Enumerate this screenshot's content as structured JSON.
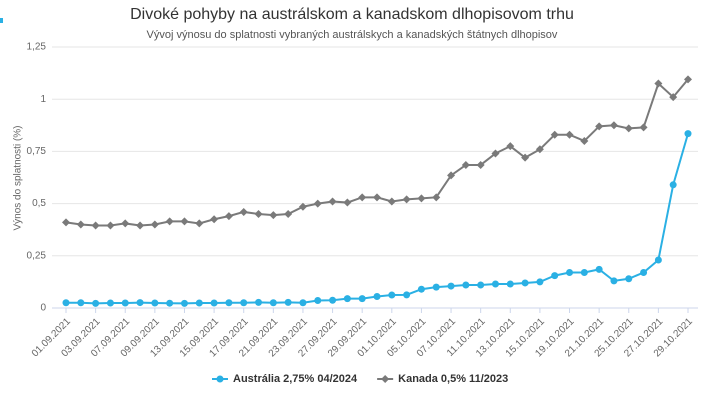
{
  "chart_data": {
    "type": "line",
    "title": "Divoké pohyby na austrálskom a kanadskom dlhopisovom trhu",
    "subtitle": "Vývoj výnosu do splatnosti vybraných austrálskych a kanadských štátnych dlhopisov",
    "y_label": "Výnos do splatnosti (%)",
    "categories": [
      "01.09.2021",
      null,
      "03.09.2021",
      null,
      "07.09.2021",
      null,
      "09.09.2021",
      null,
      "13.09.2021",
      null,
      "15.09.2021",
      null,
      "17.09.2021",
      null,
      "21.09.2021",
      null,
      "23.09.2021",
      null,
      "27.09.2021",
      null,
      "29.09.2021",
      null,
      "01.10.2021",
      null,
      "05.10.2021",
      null,
      "07.10.2021",
      null,
      "11.10.2021",
      null,
      "13.10.2021",
      null,
      "15.10.2021",
      null,
      "19.10.2021",
      null,
      "21.10.2021",
      null,
      "25.10.2021",
      null,
      "27.10.2021",
      null,
      "29.10.2021"
    ],
    "series": [
      {
        "name": "Austrália 2,75% 04/2024",
        "color": "#2ab0e4",
        "marker": "circle",
        "values": [
          0.025,
          0.025,
          0.022,
          0.024,
          0.024,
          0.026,
          0.024,
          0.023,
          0.022,
          0.024,
          0.024,
          0.025,
          0.025,
          0.027,
          0.025,
          0.027,
          0.025,
          0.036,
          0.037,
          0.045,
          0.045,
          0.055,
          0.062,
          0.063,
          0.09,
          0.1,
          0.105,
          0.11,
          0.11,
          0.115,
          0.115,
          0.12,
          0.125,
          0.155,
          0.17,
          0.17,
          0.185,
          0.13,
          0.14,
          0.17,
          0.23,
          0.59,
          0.835
        ]
      },
      {
        "name": "Kanada 0,5% 11/2023",
        "color": "#7a7a7a",
        "marker": "diamond",
        "values": [
          0.41,
          0.4,
          0.395,
          0.395,
          0.405,
          0.395,
          0.4,
          0.415,
          0.415,
          0.405,
          0.425,
          0.44,
          0.46,
          0.45,
          0.445,
          0.45,
          0.485,
          0.5,
          0.51,
          0.505,
          0.53,
          0.53,
          0.51,
          0.52,
          0.525,
          0.53,
          0.635,
          0.685,
          0.685,
          0.74,
          0.775,
          0.72,
          0.76,
          0.83,
          0.83,
          0.8,
          0.87,
          0.875,
          0.86,
          0.865,
          1.075,
          1.01,
          1.095
        ]
      }
    ],
    "ylim": [
      0,
      1.25
    ],
    "yticks": [
      0,
      {
        "value": 0.25,
        "label": "0,25"
      },
      {
        "value": 0.5,
        "label": "0,5"
      },
      {
        "value": 0.75,
        "label": "0,75"
      },
      1,
      {
        "value": 1.25,
        "label": "1,25"
      }
    ],
    "grid": true,
    "legend": "bottom"
  }
}
